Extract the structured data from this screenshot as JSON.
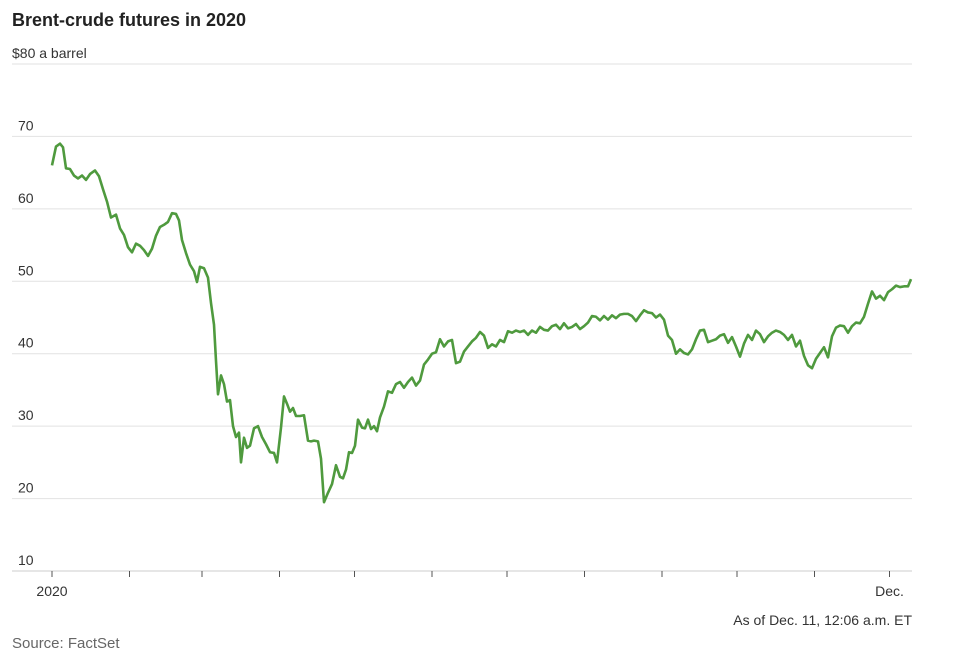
{
  "chart_data": {
    "type": "line",
    "title": "Brent-crude futures in 2020",
    "note": "As of Dec. 11, 12:06 a.m. ET",
    "source": "Source: FactSet",
    "color": "#4f9a3e",
    "grid": true,
    "ylim": [
      10,
      80
    ],
    "yticks": [
      10,
      20,
      30,
      40,
      50,
      60,
      70,
      {
        "value": 80,
        "label": "$80 a barrel"
      }
    ],
    "xlim": [
      0,
      344
    ],
    "xticks": [
      {
        "value": 0,
        "label": "2020"
      },
      {
        "value": 335,
        "label": "Dec."
      }
    ],
    "xminorticks": [
      31,
      60,
      91,
      121,
      152,
      182,
      213,
      244,
      274,
      305
    ],
    "x": [
      0,
      1.6,
      3.2,
      4.4,
      5.6,
      7.2,
      8.8,
      10.4,
      12,
      13.6,
      15.2,
      17.2,
      18.8,
      20.4,
      22,
      23.6,
      25.6,
      27.2,
      28.8,
      30.4,
      32,
      33.6,
      35.2,
      36.8,
      38.4,
      40,
      41.6,
      43.2,
      44.8,
      46.4,
      48,
      49.6,
      50.8,
      52,
      53.6,
      55.2,
      56.8,
      58,
      59.2,
      60.8,
      62.4,
      63.6,
      64.8,
      65.6,
      66.4,
      67.6,
      68.8,
      70,
      71.2,
      72.4,
      73.6,
      74.8,
      75.6,
      76.8,
      78,
      79.2,
      80.8,
      82.4,
      84,
      85.6,
      87.2,
      88.8,
      90,
      91.6,
      92.8,
      94,
      95.2,
      96.4,
      97.6,
      99.2,
      100.8,
      102.4,
      103.6,
      104.8,
      106.4,
      107.6,
      108.8,
      110.4,
      112,
      113.6,
      115.2,
      116.4,
      117.6,
      118.8,
      120,
      121.2,
      122.4,
      124,
      125.2,
      126.4,
      127.6,
      128.8,
      130,
      131.2,
      132.8,
      134.4,
      136,
      137.6,
      139.2,
      140.8,
      142.4,
      144,
      145.6,
      147.2,
      148.8,
      150.4,
      152,
      153.6,
      155.2,
      156.8,
      158.4,
      160,
      161.6,
      163.2,
      164.8,
      166.4,
      168,
      169.6,
      171.2,
      172.8,
      174.4,
      176,
      177.6,
      179.2,
      180.8,
      182.4,
      184,
      185.6,
      187.2,
      188.8,
      190.4,
      192,
      193.6,
      195.2,
      196.8,
      198.4,
      200,
      201.6,
      203.2,
      204.8,
      206.4,
      208,
      209.6,
      211.2,
      212.8,
      214.4,
      216,
      217.6,
      219.2,
      220.8,
      222.4,
      224,
      225.6,
      227.2,
      228.8,
      230.4,
      232,
      233.6,
      235.2,
      236.8,
      238.4,
      240,
      241.6,
      243.2,
      244.8,
      246.4,
      248,
      249.6,
      251.2,
      252.8,
      254.4,
      256,
      257.6,
      259.2,
      260.8,
      262.4,
      264,
      265.6,
      267.2,
      268.8,
      270.4,
      272,
      273.6,
      275.2,
      276.8,
      278.4,
      280,
      281.6,
      283.2,
      284.8,
      286.4,
      288,
      289.6,
      291.2,
      292.8,
      294.4,
      296,
      297.6,
      299.2,
      300.8,
      302.4,
      304,
      305.6,
      307.2,
      308.8,
      310.4,
      312,
      313.6,
      315.2,
      316.8,
      318.4,
      320,
      321.6,
      323.2,
      324.8,
      326.4,
      328,
      329.6,
      331.2,
      332.8,
      334.4,
      336,
      337.6,
      339.2,
      340.8,
      342.4,
      343.6
    ],
    "values": [
      66.0,
      68.6,
      69.0,
      68.5,
      65.6,
      65.5,
      64.6,
      64.2,
      64.6,
      64.0,
      64.8,
      65.3,
      64.5,
      62.7,
      61.0,
      58.8,
      59.2,
      57.3,
      56.4,
      54.7,
      54.0,
      55.2,
      54.9,
      54.3,
      53.5,
      54.5,
      56.3,
      57.5,
      57.8,
      58.2,
      59.4,
      59.3,
      58.4,
      55.7,
      53.9,
      52.3,
      51.4,
      49.9,
      52.0,
      51.8,
      50.5,
      47.0,
      44.0,
      39.0,
      34.4,
      37.0,
      35.8,
      33.4,
      33.6,
      30.0,
      28.5,
      29.1,
      25.0,
      28.4,
      27.0,
      27.3,
      29.7,
      30.0,
      28.5,
      27.5,
      26.4,
      26.3,
      25.0,
      29.8,
      34.1,
      33.1,
      32.0,
      32.5,
      31.4,
      31.4,
      31.5,
      28.0,
      27.9,
      28.0,
      27.9,
      25.5,
      19.5,
      20.8,
      22.0,
      24.6,
      23.0,
      22.8,
      24.0,
      26.4,
      26.3,
      27.3,
      30.9,
      29.8,
      29.7,
      30.9,
      29.6,
      30.0,
      29.3,
      31.2,
      32.7,
      34.8,
      34.6,
      35.8,
      36.1,
      35.3,
      36.1,
      36.7,
      35.6,
      36.3,
      38.5,
      39.2,
      40.0,
      40.2,
      42.0,
      41.0,
      41.7,
      41.9,
      38.7,
      38.9,
      40.3,
      41.0,
      41.7,
      42.2,
      43.0,
      42.5,
      40.8,
      41.3,
      41.0,
      41.9,
      41.6,
      43.1,
      42.9,
      43.2,
      43.0,
      43.2,
      42.6,
      43.2,
      42.9,
      43.7,
      43.3,
      43.2,
      43.8,
      44.0,
      43.4,
      44.2,
      43.5,
      43.7,
      44.1,
      43.4,
      43.8,
      44.3,
      45.2,
      45.1,
      44.6,
      45.2,
      44.7,
      45.3,
      44.9,
      45.4,
      45.5,
      45.5,
      45.2,
      44.5,
      45.3,
      46.0,
      45.7,
      45.6,
      45.0,
      45.4,
      44.7,
      42.5,
      41.9,
      40.0,
      40.6,
      40.1,
      39.9,
      40.6,
      42.0,
      43.2,
      43.3,
      41.6,
      41.8,
      42.0,
      42.5,
      42.7,
      41.5,
      42.3,
      41.0,
      39.6,
      41.4,
      42.6,
      41.9,
      43.2,
      42.7,
      41.6,
      42.4,
      42.9,
      43.2,
      43.0,
      42.6,
      41.9,
      42.6,
      41.0,
      41.8,
      39.7,
      38.4,
      38.0,
      39.3,
      40.1,
      40.9,
      39.5,
      42.4,
      43.6,
      43.9,
      43.8,
      42.9,
      43.8,
      44.3,
      44.2,
      45.1,
      46.9,
      48.6,
      47.6,
      48.0,
      47.4,
      48.5,
      48.9,
      49.4,
      49.2,
      49.3,
      49.3,
      50.3
    ]
  }
}
